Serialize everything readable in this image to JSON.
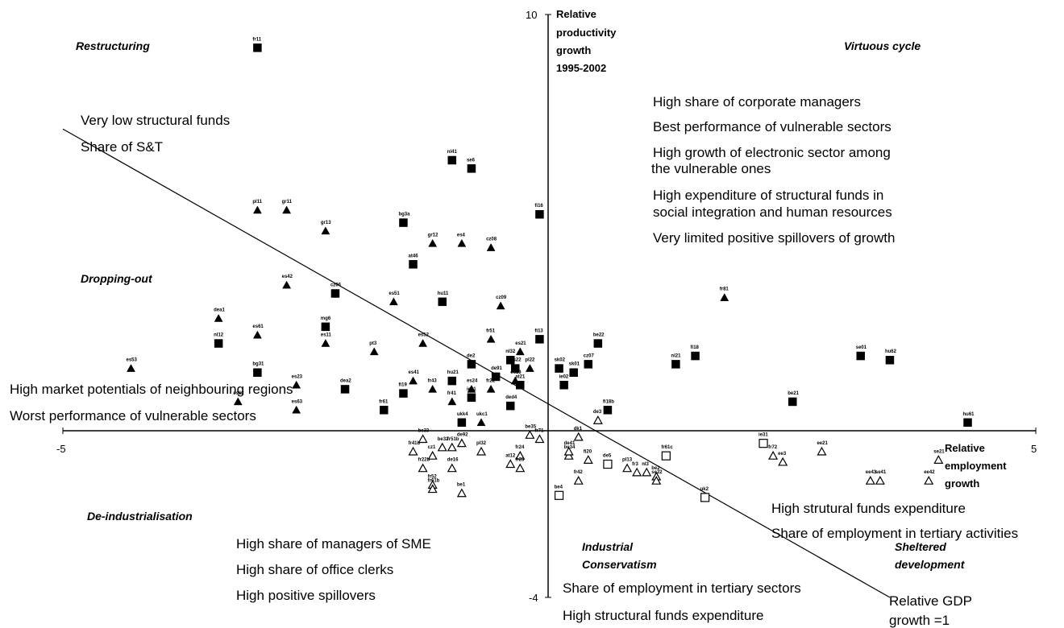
{
  "chart_data": {
    "type": "scatter",
    "xlabel": "Relative employment growth",
    "xlabel_lines": [
      "Relative",
      "employment",
      "growth"
    ],
    "ylabel_lines": [
      "Relative",
      "productivity",
      "growth",
      "1995-2002"
    ],
    "xlim": [
      -5,
      5
    ],
    "ylim": [
      -4,
      10
    ],
    "ticks": {
      "x_min": "-5",
      "x_max": "5",
      "y_min": "-4",
      "y_max": "10"
    },
    "reference_line": {
      "label_lines": [
        "Relative GDP",
        "growth =1"
      ],
      "points": [
        [
          -5,
          7.25
        ],
        [
          3.5,
          -4
        ]
      ]
    },
    "quadrants": {
      "restructuring": "Restructuring",
      "virtuous_cycle": "Virtuous cycle",
      "dropping_out": "Dropping-out",
      "de_industrialisation": "De-industrialisation",
      "industrial_conservatism_lines": [
        "Industrial",
        "Conservatism"
      ],
      "sheltered_development_lines": [
        "Sheltered",
        "development"
      ]
    },
    "annotations": {
      "top_left": [
        "Very low structural funds",
        "Share of S&T"
      ],
      "top_right": [
        "High share of corporate managers",
        "Best performance of vulnerable sectors",
        "High growth of electronic sector among",
        "the vulnerable ones",
        "High expenditure of structural funds in",
        "social integration and human resources",
        "Very limited positive spillovers of growth"
      ],
      "middle_left": [
        "High market potentials of neighbouring regions",
        "Worst performance of vulnerable sectors"
      ],
      "bottom_left": [
        "High share of managers of SME",
        "High share of office clerks",
        "High positive spillovers"
      ],
      "bottom_mid": [
        "Share of employment in tertiary sectors",
        "High structural funds expenditure"
      ],
      "bottom_right": [
        "High strutural funds expenditure",
        "Share of employment in tertiary activities"
      ]
    },
    "series": [
      {
        "marker": "filled-square",
        "points": [
          {
            "x": -3.0,
            "y": 9.2,
            "label": "fr11"
          },
          {
            "x": -1.0,
            "y": 6.5,
            "label": "nl41"
          },
          {
            "x": -0.8,
            "y": 6.3,
            "label": "se6"
          },
          {
            "x": -1.5,
            "y": 5.0,
            "label": "bg3a"
          },
          {
            "x": -0.1,
            "y": 5.2,
            "label": "fi16"
          },
          {
            "x": -1.4,
            "y": 4.0,
            "label": "at46"
          },
          {
            "x": -2.2,
            "y": 3.3,
            "label": "cz06"
          },
          {
            "x": -1.1,
            "y": 3.1,
            "label": "hu11"
          },
          {
            "x": -2.3,
            "y": 2.5,
            "label": "mg6"
          },
          {
            "x": -3.4,
            "y": 2.1,
            "label": "nl12"
          },
          {
            "x": -0.1,
            "y": 2.2,
            "label": "fi13"
          },
          {
            "x": 0.5,
            "y": 2.1,
            "label": "be22"
          },
          {
            "x": -3.0,
            "y": 1.4,
            "label": "bg31"
          },
          {
            "x": -0.4,
            "y": 1.7,
            "label": "nl32"
          },
          {
            "x": 0.1,
            "y": 1.5,
            "label": "sk02"
          },
          {
            "x": 0.4,
            "y": 1.6,
            "label": "cz07"
          },
          {
            "x": 1.5,
            "y": 1.8,
            "label": "fi18"
          },
          {
            "x": 0.15,
            "y": 1.1,
            "label": "ie02"
          },
          {
            "x": 0.25,
            "y": 1.4,
            "label": "sk01"
          },
          {
            "x": -0.35,
            "y": 1.5,
            "label": "es22"
          },
          {
            "x": 1.3,
            "y": 1.6,
            "label": "nl21"
          },
          {
            "x": -0.55,
            "y": 1.3,
            "label": "de91"
          },
          {
            "x": -0.8,
            "y": 1.6,
            "label": "de2"
          },
          {
            "x": -0.3,
            "y": 1.1,
            "label": "at21"
          },
          {
            "x": -1.0,
            "y": 1.2,
            "label": "hu21"
          },
          {
            "x": 3.2,
            "y": 1.8,
            "label": "se01"
          },
          {
            "x": 3.5,
            "y": 1.7,
            "label": "hu62"
          },
          {
            "x": -1.5,
            "y": 0.9,
            "label": "fi19"
          },
          {
            "x": -2.1,
            "y": 1.0,
            "label": "dea2"
          },
          {
            "x": -1.7,
            "y": 0.5,
            "label": "fr61"
          },
          {
            "x": -0.8,
            "y": 0.8,
            "label": "ie01"
          },
          {
            "x": -0.9,
            "y": 0.2,
            "label": "ukk4"
          },
          {
            "x": -0.4,
            "y": 0.6,
            "label": "ded4"
          },
          {
            "x": 0.6,
            "y": 0.5,
            "label": "fi18b"
          },
          {
            "x": 2.5,
            "y": 0.7,
            "label": "be21"
          },
          {
            "x": 4.3,
            "y": 0.2,
            "label": "hu61"
          }
        ]
      },
      {
        "marker": "filled-triangle",
        "points": [
          {
            "x": -3.0,
            "y": 5.3,
            "label": "pl11"
          },
          {
            "x": -2.7,
            "y": 5.3,
            "label": "gr11"
          },
          {
            "x": -2.3,
            "y": 4.8,
            "label": "gr13"
          },
          {
            "x": -1.2,
            "y": 4.5,
            "label": "gr12"
          },
          {
            "x": -0.9,
            "y": 4.5,
            "label": "es4"
          },
          {
            "x": -0.6,
            "y": 4.4,
            "label": "cz08"
          },
          {
            "x": -2.7,
            "y": 3.5,
            "label": "es42"
          },
          {
            "x": -1.6,
            "y": 3.1,
            "label": "es51"
          },
          {
            "x": -0.5,
            "y": 3.0,
            "label": "cz09"
          },
          {
            "x": -3.4,
            "y": 2.7,
            "label": "dea1"
          },
          {
            "x": -3.0,
            "y": 2.3,
            "label": "es61"
          },
          {
            "x": -2.3,
            "y": 2.1,
            "label": "es11"
          },
          {
            "x": -1.8,
            "y": 1.9,
            "label": "pt3"
          },
          {
            "x": -0.3,
            "y": 1.9,
            "label": "es21"
          },
          {
            "x": -0.6,
            "y": 2.2,
            "label": "fr51"
          },
          {
            "x": -1.3,
            "y": 2.1,
            "label": "es52"
          },
          {
            "x": -4.3,
            "y": 1.5,
            "label": "es53"
          },
          {
            "x": 1.8,
            "y": 3.2,
            "label": "fr81"
          },
          {
            "x": -0.2,
            "y": 1.5,
            "label": "pl22"
          },
          {
            "x": -0.35,
            "y": 1.2,
            "label": "es13"
          },
          {
            "x": -1.2,
            "y": 1.0,
            "label": "fr43"
          },
          {
            "x": -0.6,
            "y": 1.0,
            "label": "fr22"
          },
          {
            "x": -0.8,
            "y": 1.0,
            "label": "es24"
          },
          {
            "x": -2.6,
            "y": 1.1,
            "label": "es23"
          },
          {
            "x": -3.2,
            "y": 0.7,
            "label": "es62"
          },
          {
            "x": -2.6,
            "y": 0.5,
            "label": "es63"
          },
          {
            "x": -1.4,
            "y": 1.2,
            "label": "es41"
          },
          {
            "x": -1.0,
            "y": 0.7,
            "label": "fr41"
          },
          {
            "x": -0.7,
            "y": 0.2,
            "label": "ukc1"
          }
        ]
      },
      {
        "marker": "open-triangle",
        "points": [
          {
            "x": 0.3,
            "y": -0.15,
            "label": "dk1"
          },
          {
            "x": -1.3,
            "y": -0.2,
            "label": "be33"
          },
          {
            "x": -0.2,
            "y": -0.1,
            "label": "be35"
          },
          {
            "x": -0.1,
            "y": -0.2,
            "label": "fr71"
          },
          {
            "x": -1.1,
            "y": -0.4,
            "label": "be32"
          },
          {
            "x": -1.4,
            "y": -0.5,
            "label": "fr41b"
          },
          {
            "x": -1.2,
            "y": -0.6,
            "label": "cz1"
          },
          {
            "x": -0.7,
            "y": -0.5,
            "label": "pl32"
          },
          {
            "x": -0.9,
            "y": -0.3,
            "label": "de92"
          },
          {
            "x": -1.0,
            "y": -0.4,
            "label": "fr51b"
          },
          {
            "x": -0.3,
            "y": -0.6,
            "label": "fr24"
          },
          {
            "x": 0.2,
            "y": -0.6,
            "label": "be34"
          },
          {
            "x": 0.4,
            "y": -0.7,
            "label": "fi20"
          },
          {
            "x": 0.2,
            "y": -0.5,
            "label": "de41"
          },
          {
            "x": -1.3,
            "y": -0.9,
            "label": "fr22b"
          },
          {
            "x": -1.0,
            "y": -0.9,
            "label": "de16"
          },
          {
            "x": -0.3,
            "y": -0.9,
            "label": "fr25"
          },
          {
            "x": -0.4,
            "y": -0.8,
            "label": "at12"
          },
          {
            "x": 0.8,
            "y": -0.9,
            "label": "pl13"
          },
          {
            "x": 1.1,
            "y": -1.1,
            "label": "be2"
          },
          {
            "x": 0.9,
            "y": -1.0,
            "label": "fr3"
          },
          {
            "x": 1.0,
            "y": -1.0,
            "label": "nl3"
          },
          {
            "x": 0.3,
            "y": -1.2,
            "label": "fr42"
          },
          {
            "x": -1.2,
            "y": -1.3,
            "label": "fr52"
          },
          {
            "x": -0.9,
            "y": -1.5,
            "label": "be1"
          },
          {
            "x": 1.1,
            "y": -1.2,
            "label": "se22"
          },
          {
            "x": 0.5,
            "y": 0.25,
            "label": "de3"
          },
          {
            "x": -1.2,
            "y": -1.4,
            "label": "fr61b"
          },
          {
            "x": 2.4,
            "y": -0.75,
            "label": "ee3"
          },
          {
            "x": 2.8,
            "y": -0.5,
            "label": "ee21"
          },
          {
            "x": 4.0,
            "y": -0.7,
            "label": "se21"
          },
          {
            "x": 3.9,
            "y": -1.2,
            "label": "ee42"
          },
          {
            "x": 3.3,
            "y": -1.2,
            "label": "ee43"
          },
          {
            "x": 3.4,
            "y": -1.2,
            "label": "se41"
          },
          {
            "x": 2.3,
            "y": -0.6,
            "label": "fr72"
          }
        ]
      },
      {
        "marker": "open-square",
        "points": [
          {
            "x": 1.2,
            "y": -0.6,
            "label": "fr61c"
          },
          {
            "x": 2.2,
            "y": -0.3,
            "label": "ie31"
          },
          {
            "x": 0.6,
            "y": -0.8,
            "label": "de5"
          },
          {
            "x": 0.1,
            "y": -1.55,
            "label": "be4"
          },
          {
            "x": 1.6,
            "y": -1.6,
            "label": "uk2"
          }
        ]
      }
    ]
  }
}
